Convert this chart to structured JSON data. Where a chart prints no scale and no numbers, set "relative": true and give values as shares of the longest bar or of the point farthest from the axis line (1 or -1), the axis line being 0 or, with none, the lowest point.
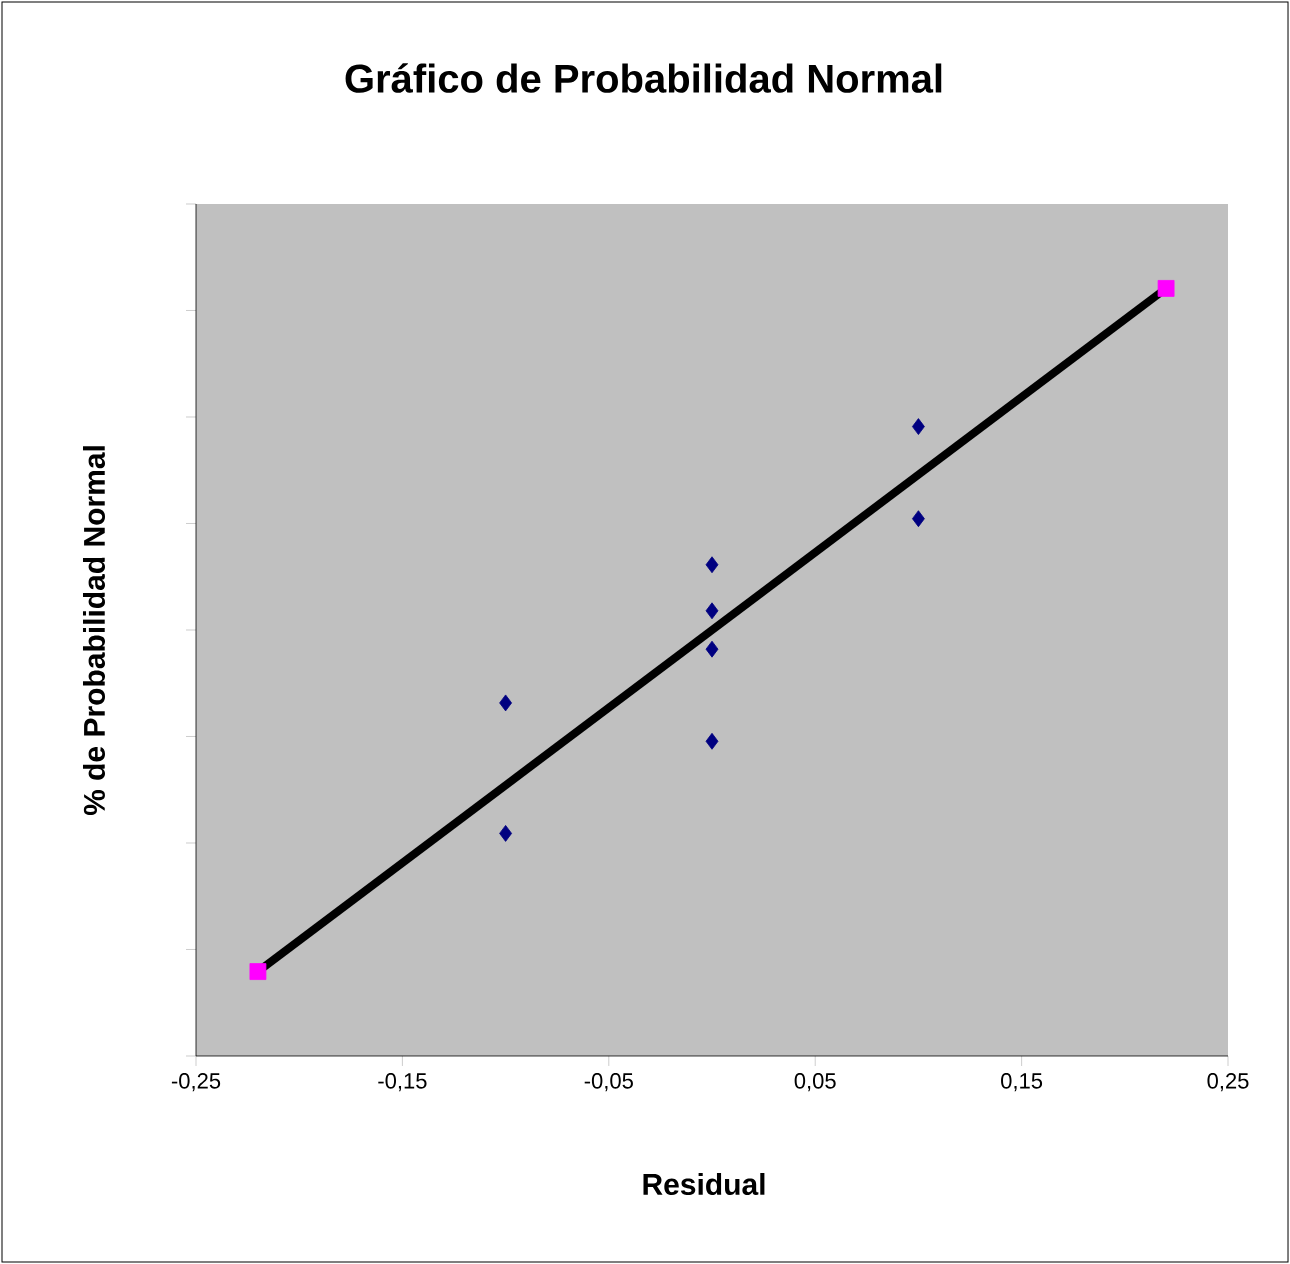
{
  "chart_data": {
    "type": "scatter",
    "title": "Gráfico de Probabilidad Normal",
    "xlabel": "Residual",
    "ylabel": "% de Probabilidad Normal",
    "relative": true,
    "tick_labels": "x",
    "xlim": [
      -0.25,
      0.25
    ],
    "xticks": [
      {
        "value": -0.25,
        "label": "-0,25"
      },
      {
        "value": -0.15,
        "label": "-0,15"
      },
      {
        "value": -0.05,
        "label": "-0,05"
      },
      {
        "value": 0.05,
        "label": "0,05"
      },
      {
        "value": 0.15,
        "label": "0,15"
      },
      {
        "value": 0.25,
        "label": "0,25"
      }
    ],
    "series": [
      {
        "marker": "diamond",
        "color": "#000080",
        "x": [
          -0.1,
          -0.1,
          0,
          0,
          0,
          0,
          0.1,
          0.1
        ],
        "values": [
          0.29,
          0.46,
          0.41,
          0.53,
          0.58,
          0.64,
          0.7,
          0.82
        ]
      },
      {
        "type": "line",
        "marker": "none",
        "color": "#000000",
        "x": [
          -0.22,
          0.22
        ],
        "values": [
          0.11,
          1
        ]
      },
      {
        "marker": "square",
        "color": "#ff00ff",
        "x": [
          -0.22,
          0.22
        ],
        "values": [
          0.11,
          1
        ]
      }
    ]
  }
}
